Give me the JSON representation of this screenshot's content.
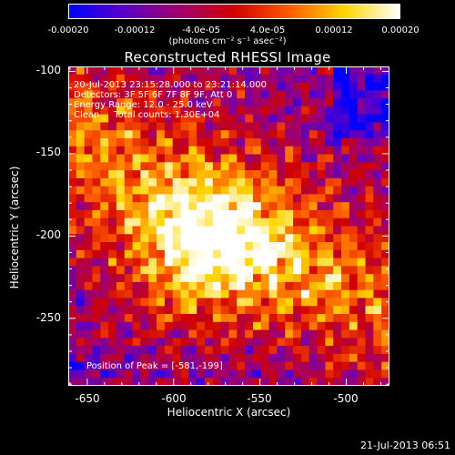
{
  "colorbar": {
    "ticks": [
      "-0.00020",
      "-0.00012",
      "-4.0e-05",
      "4.0e-05",
      "0.00012",
      "0.00020"
    ],
    "tick_values": [
      -0.0002,
      -0.00012,
      -4e-05,
      4e-05,
      0.00012,
      0.0002
    ],
    "range": [
      -0.0002,
      0.0002
    ],
    "units": "(photons cm⁻² s⁻¹ asec⁻²)",
    "colors": [
      "#0000ff",
      "#5a00c8",
      "#a0006e",
      "#d00000",
      "#ff5a00",
      "#ffd600",
      "#ffffff"
    ]
  },
  "chart_data": {
    "type": "heatmap",
    "title": "Reconstructed RHESSI Image",
    "xlabel": "Heliocentric X (arcsec)",
    "ylabel": "Heliocentric Y (arcsec)",
    "xlim": [
      -661,
      -475
    ],
    "ylim": [
      -291,
      -97
    ],
    "x_ticks": [
      "-650",
      "-600",
      "-550",
      "-500"
    ],
    "x_tick_values": [
      -650,
      -600,
      -550,
      -500
    ],
    "y_ticks": [
      "-100",
      "-150",
      "-200",
      "-250"
    ],
    "y_tick_values": [
      -100,
      -150,
      -200,
      -250
    ],
    "peak_position": [
      -581,
      -199
    ],
    "annotations": [
      "20-Jul-2013 23:15:28.000 to 23:21:14.000",
      "Detectors: 3F 5F 6F 7F 8F 9F, Att 0",
      "Energy Range: 12.0 - 25.0 keV",
      "Clean     Total counts: 1.30E+04"
    ],
    "peak_label": "Position of Peak = [-581,-199]"
  },
  "footer": {
    "timestamp": "21-Jul-2013 06:51"
  }
}
